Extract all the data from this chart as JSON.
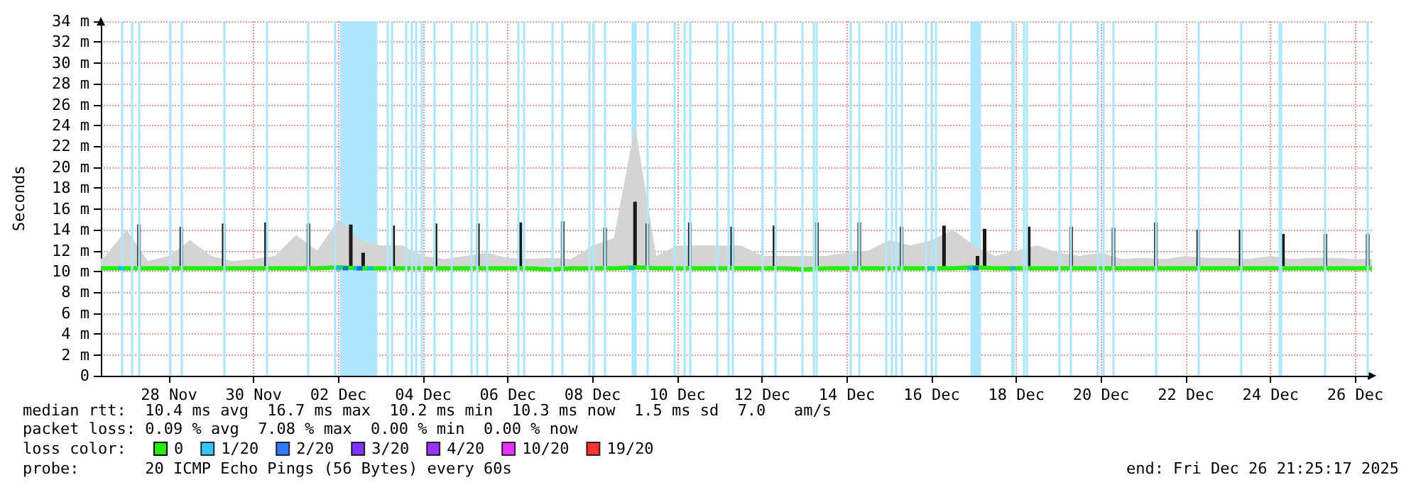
{
  "chart_data": {
    "type": "line",
    "ylabel": "Seconds",
    "legend_title": "loss color:",
    "legend": "bottom",
    "grid": true,
    "line_style": "solid",
    "xlim": [
      "2025-11-26T21:25",
      "2025-12-26T21:25"
    ],
    "xticks": [
      {
        "value": "2025-11-28T12:00",
        "label": "28 Nov"
      },
      {
        "value": "2025-11-30T12:00",
        "label": "30 Nov"
      },
      {
        "value": "2025-12-02T12:00",
        "label": "02 Dec"
      },
      {
        "value": "2025-12-04T12:00",
        "label": "04 Dec"
      },
      {
        "value": "2025-12-06T12:00",
        "label": "06 Dec"
      },
      {
        "value": "2025-12-08T12:00",
        "label": "08 Dec"
      },
      {
        "value": "2025-12-10T12:00",
        "label": "10 Dec"
      },
      {
        "value": "2025-12-12T12:00",
        "label": "12 Dec"
      },
      {
        "value": "2025-12-14T12:00",
        "label": "14 Dec"
      },
      {
        "value": "2025-12-16T12:00",
        "label": "16 Dec"
      },
      {
        "value": "2025-12-18T12:00",
        "label": "18 Dec"
      },
      {
        "value": "2025-12-20T12:00",
        "label": "20 Dec"
      },
      {
        "value": "2025-12-22T12:00",
        "label": "22 Dec"
      },
      {
        "value": "2025-12-24T12:00",
        "label": "24 Dec"
      },
      {
        "value": "2025-12-26T12:00",
        "label": "26 Dec"
      }
    ],
    "ylim": [
      0,
      34
    ],
    "yticks": [
      0,
      {
        "value": 2,
        "label": "2 m"
      },
      {
        "value": 4,
        "label": "4 m"
      },
      {
        "value": 6,
        "label": "6 m"
      },
      {
        "value": 8,
        "label": "8 m"
      },
      {
        "value": 10,
        "label": "10 m"
      },
      {
        "value": 12,
        "label": "12 m"
      },
      {
        "value": 14,
        "label": "14 m"
      },
      {
        "value": 16,
        "label": "16 m"
      },
      {
        "value": 18,
        "label": "18 m"
      },
      {
        "value": 20,
        "label": "20 m"
      },
      {
        "value": 22,
        "label": "22 m"
      },
      {
        "value": 24,
        "label": "24 m"
      },
      {
        "value": 26,
        "label": "26 m"
      },
      {
        "value": 28,
        "label": "28 m"
      },
      {
        "value": 30,
        "label": "30 m"
      },
      {
        "value": 32,
        "label": "32 m"
      },
      {
        "value": 34,
        "label": "34 m"
      }
    ],
    "annotations": [
      "median rtt:  10.4 ms avg  16.7 ms max  10.2 ms min  10.3 ms now  1.5 ms sd  7.0   am/s",
      "packet loss: 0.09 % avg  7.08 % max  0.00 % min  0.00 % now",
      "probe:       20 ICMP Echo Pings (56 Bytes) every 60s",
      "end: Fri Dec 26 21:25:17 2025"
    ],
    "series": [
      {
        "name": "0",
        "marker": "none",
        "color": "#22ee00",
        "x": [
          "2025-11-26T21:25",
          "2025-11-27T00:00",
          "2025-11-27T12:00",
          "2025-11-28T00:00",
          "2025-11-28T12:00",
          "2025-11-29T00:00",
          "2025-11-29T12:00",
          "2025-11-30T00:00",
          "2025-11-30T12:00",
          "2025-12-01T00:00",
          "2025-12-01T12:00",
          "2025-12-02T00:00",
          "2025-12-02T12:00",
          "2025-12-03T00:00",
          "2025-12-03T12:00",
          "2025-12-04T00:00",
          "2025-12-04T12:00",
          "2025-12-05T00:00",
          "2025-12-05T12:00",
          "2025-12-06T00:00",
          "2025-12-06T12:00",
          "2025-12-07T00:00",
          "2025-12-07T12:00",
          "2025-12-08T00:00",
          "2025-12-08T12:00",
          "2025-12-09T00:00",
          "2025-12-09T12:00",
          "2025-12-10T00:00",
          "2025-12-10T12:00",
          "2025-12-11T00:00",
          "2025-12-11T12:00",
          "2025-12-12T00:00",
          "2025-12-12T12:00",
          "2025-12-13T00:00",
          "2025-12-13T12:00",
          "2025-12-14T00:00",
          "2025-12-14T12:00",
          "2025-12-15T00:00",
          "2025-12-15T12:00",
          "2025-12-16T00:00",
          "2025-12-16T12:00",
          "2025-12-17T00:00",
          "2025-12-17T12:00",
          "2025-12-18T00:00",
          "2025-12-18T12:00",
          "2025-12-19T00:00",
          "2025-12-19T12:00",
          "2025-12-20T00:00",
          "2025-12-20T12:00",
          "2025-12-21T00:00",
          "2025-12-21T12:00",
          "2025-12-22T00:00",
          "2025-12-22T12:00",
          "2025-12-23T00:00",
          "2025-12-23T12:00",
          "2025-12-24T00:00",
          "2025-12-24T12:00",
          "2025-12-25T00:00",
          "2025-12-25T12:00",
          "2025-12-26T00:00",
          "2025-12-26T12:00",
          "2025-12-26T21:25"
        ],
        "values": [
          10.3,
          10.3,
          10.3,
          10.3,
          10.3,
          10.3,
          10.3,
          10.3,
          10.3,
          10.3,
          10.3,
          10.3,
          10.4,
          10.3,
          10.3,
          10.3,
          10.3,
          10.3,
          10.3,
          10.3,
          10.3,
          10.3,
          10.2,
          10.3,
          10.3,
          10.3,
          10.4,
          10.3,
          10.3,
          10.3,
          10.3,
          10.3,
          10.3,
          10.3,
          10.2,
          10.3,
          10.3,
          10.3,
          10.3,
          10.3,
          10.3,
          10.3,
          10.4,
          10.3,
          10.3,
          10.3,
          10.3,
          10.3,
          10.3,
          10.3,
          10.3,
          10.3,
          10.3,
          10.3,
          10.3,
          10.3,
          10.3,
          10.3,
          10.3,
          10.3,
          10.3,
          10.3
        ],
        "lower": [
          10.1,
          10.1,
          10.1,
          10.1,
          10.1,
          10.1,
          10.1,
          10.1,
          10.1,
          10.1,
          10.1,
          10.1,
          10.1,
          10.1,
          10.1,
          10.1,
          10.1,
          10.1,
          10.1,
          10.1,
          10.1,
          10.1,
          10.1,
          10.1,
          10.1,
          10.1,
          10.1,
          10.1,
          10.1,
          10.1,
          10.1,
          10.1,
          10.1,
          10.1,
          10.1,
          10.1,
          10.1,
          10.1,
          10.1,
          10.1,
          10.1,
          10.1,
          10.1,
          10.1,
          10.1,
          10.1,
          10.1,
          10.1,
          10.1,
          10.1,
          10.1,
          10.1,
          10.1,
          10.1,
          10.1,
          10.1,
          10.1,
          10.1,
          10.1,
          10.1,
          10.1,
          10.1
        ],
        "upper": [
          11.2,
          11.5,
          14,
          11,
          11.5,
          13,
          11.5,
          11,
          11.2,
          11.5,
          13.5,
          12,
          15,
          13,
          12.5,
          12.5,
          11.5,
          11.2,
          11.5,
          11.8,
          11.3,
          11.2,
          11.3,
          11.2,
          12.5,
          13.2,
          24,
          11.5,
          12.5,
          12.5,
          12.5,
          12.5,
          11.5,
          11.5,
          11.5,
          11.5,
          11.8,
          12,
          13,
          12.5,
          13,
          14,
          12.5,
          11.5,
          12,
          12.5,
          11.8,
          11.5,
          11.8,
          11.2,
          11.3,
          11.2,
          11.5,
          11.3,
          11.3,
          11.2,
          11.5,
          11.2,
          11.3,
          11.3,
          11.2,
          11.2
        ]
      },
      {
        "marker": "none",
        "color": "#1a1a1a",
        "x": [
          "2025-11-27T19:00",
          "2025-11-27T19:00",
          "2025-11-27T20:00",
          "2025-11-28T19:00",
          "2025-11-28T19:00",
          "2025-11-28T20:00",
          "2025-11-29T19:00",
          "2025-11-29T19:00",
          "2025-11-29T20:00",
          "2025-11-30T19:00",
          "2025-11-30T19:00",
          "2025-11-30T20:00",
          "2025-12-01T19:00",
          "2025-12-01T19:00",
          "2025-12-01T20:00",
          "2025-12-02T19:00",
          "2025-12-02T19:00",
          "2025-12-02T20:00",
          "2025-12-03T02:00",
          "2025-12-03T02:00",
          "2025-12-03T03:00",
          "2025-12-03T19:00",
          "2025-12-03T19:00",
          "2025-12-03T20:00",
          "2025-12-04T19:00",
          "2025-12-04T19:00",
          "2025-12-04T20:00",
          "2025-12-05T19:00",
          "2025-12-05T19:00",
          "2025-12-05T20:00",
          "2025-12-06T19:00",
          "2025-12-06T19:00",
          "2025-12-06T20:00",
          "2025-12-07T19:00",
          "2025-12-07T19:00",
          "2025-12-07T20:00",
          "2025-12-08T19:00",
          "2025-12-08T19:00",
          "2025-12-08T20:00",
          "2025-12-09T12:00",
          "2025-12-09T12:00",
          "2025-12-09T13:00",
          "2025-12-09T19:00",
          "2025-12-09T19:00",
          "2025-12-09T20:00",
          "2025-12-10T19:00",
          "2025-12-10T19:00",
          "2025-12-10T20:00",
          "2025-12-11T19:00",
          "2025-12-11T19:00",
          "2025-12-11T20:00",
          "2025-12-12T19:00",
          "2025-12-12T19:00",
          "2025-12-12T20:00",
          "2025-12-13T19:00",
          "2025-12-13T19:00",
          "2025-12-13T20:00",
          "2025-12-14T19:00",
          "2025-12-14T19:00",
          "2025-12-14T20:00",
          "2025-12-15T19:00",
          "2025-12-15T19:00",
          "2025-12-15T20:00",
          "2025-12-16T19:00",
          "2025-12-16T19:00",
          "2025-12-16T20:00",
          "2025-12-17T14:00",
          "2025-12-17T14:00",
          "2025-12-17T15:00",
          "2025-12-17T18:00",
          "2025-12-17T18:00",
          "2025-12-17T19:00",
          "2025-12-18T19:00",
          "2025-12-18T19:00",
          "2025-12-18T20:00",
          "2025-12-19T19:00",
          "2025-12-19T19:00",
          "2025-12-19T20:00",
          "2025-12-20T19:00",
          "2025-12-20T19:00",
          "2025-12-20T20:00",
          "2025-12-21T19:00",
          "2025-12-21T19:00",
          "2025-12-21T20:00",
          "2025-12-22T19:00",
          "2025-12-22T19:00",
          "2025-12-22T20:00",
          "2025-12-23T19:00",
          "2025-12-23T19:00",
          "2025-12-23T20:00",
          "2025-12-24T19:00",
          "2025-12-24T19:00",
          "2025-12-24T20:00",
          "2025-12-25T19:00",
          "2025-12-25T19:00",
          "2025-12-25T20:00",
          "2025-12-26T19:00",
          "2025-12-26T19:00"
        ],
        "values": [
          10.5,
          14.5,
          null,
          10.5,
          14.3,
          null,
          10.5,
          14.6,
          null,
          10.5,
          14.7,
          null,
          10.5,
          14.6,
          null,
          10.5,
          14.5,
          null,
          10.5,
          11.8,
          null,
          10.5,
          14.4,
          null,
          10.5,
          14.6,
          null,
          10.5,
          14.6,
          null,
          10.5,
          14.7,
          null,
          10.5,
          14.8,
          null,
          10.5,
          14.2,
          null,
          10.5,
          16.7,
          null,
          10.5,
          14.6,
          null,
          10.5,
          14.7,
          null,
          10.5,
          14.3,
          null,
          10.5,
          14.4,
          null,
          10.5,
          14.7,
          null,
          10.5,
          14.7,
          null,
          10.5,
          14.3,
          null,
          10.5,
          14.4,
          null,
          10.5,
          11.5,
          null,
          10.5,
          14.1,
          null,
          10.5,
          14.3,
          null,
          10.5,
          14.3,
          null,
          10.5,
          14.2,
          null,
          10.5,
          14.7,
          null,
          10.5,
          14.0,
          null,
          10.5,
          14.0,
          null,
          10.5,
          13.6,
          null,
          10.5,
          13.6,
          null,
          10.5,
          13.6
        ]
      },
      {
        "name": "1/20",
        "type": "scatter",
        "marker": "square",
        "color": "#00b8ff",
        "x": [
          "2025-11-27T09:00",
          "2025-12-02T12:00",
          "2025-12-02T22:00",
          "2025-12-03T06:00",
          "2025-12-09T10:00",
          "2025-12-16T12:00",
          "2025-12-17T10:00",
          "2025-12-18T10:00"
        ],
        "values": [
          10.3,
          10.3,
          10.3,
          10.3,
          10.3,
          10.3,
          10.3,
          10.3
        ]
      },
      {
        "name": "2/20",
        "type": "scatter",
        "marker": "square",
        "color": "#0059ff",
        "x": [
          "2025-12-02T16:00",
          "2025-12-03T00:00",
          "2025-12-17T13:00"
        ],
        "values": [
          10.3,
          10.3,
          10.3
        ]
      },
      {
        "name": "3/20",
        "type": "scatter",
        "color": "#5e00ff"
      },
      {
        "name": "4/20",
        "type": "scatter",
        "color": "#7f00ff"
      },
      {
        "name": "10/20",
        "type": "scatter",
        "color": "#dd00ff"
      },
      {
        "name": "19/20",
        "type": "scatter",
        "color": "#ff0000"
      }
    ],
    "bands": [
      {
        "axis": "x",
        "from": "2025-12-02T13:00",
        "to": "2025-12-03T10:00",
        "color": "#aee6fb"
      },
      {
        "axis": "x",
        "from": "2025-12-09T10:00",
        "to": "2025-12-09T13:00",
        "color": "#aee6fb"
      },
      {
        "axis": "x",
        "from": "2025-12-17T10:00",
        "to": "2025-12-17T16:00",
        "color": "#aee6fb"
      },
      {
        "axis": "x",
        "from": "2025-12-18T09:00",
        "to": "2025-12-18T11:00",
        "color": "#aee6fb"
      }
    ],
    "ref_lines": [
      {
        "axis": "x",
        "value": "2025-11-27T09:00",
        "color": "#aee6fb"
      },
      {
        "axis": "x",
        "value": "2025-11-27T15:00",
        "color": "#aee6fb"
      },
      {
        "axis": "x",
        "value": "2025-11-27T19:00",
        "color": "#aee6fb"
      },
      {
        "axis": "x",
        "value": "2025-11-28T13:00",
        "color": "#aee6fb"
      },
      {
        "axis": "x",
        "value": "2025-11-28T19:00",
        "color": "#aee6fb"
      },
      {
        "axis": "x",
        "value": "2025-11-29T19:00",
        "color": "#aee6fb"
      },
      {
        "axis": "x",
        "value": "2025-11-30T19:00",
        "color": "#aee6fb"
      },
      {
        "axis": "x",
        "value": "2025-12-01T19:00",
        "color": "#aee6fb"
      },
      {
        "axis": "x",
        "value": "2025-12-02T10:00",
        "color": "#aee6fb"
      },
      {
        "axis": "x",
        "value": "2025-12-03T16:00",
        "color": "#aee6fb"
      },
      {
        "axis": "x",
        "value": "2025-12-03T18:00",
        "color": "#aee6fb"
      },
      {
        "axis": "x",
        "value": "2025-12-04T02:00",
        "color": "#aee6fb"
      },
      {
        "axis": "x",
        "value": "2025-12-04T05:00",
        "color": "#aee6fb"
      },
      {
        "axis": "x",
        "value": "2025-12-04T08:00",
        "color": "#aee6fb"
      },
      {
        "axis": "x",
        "value": "2025-12-04T11:00",
        "color": "#aee6fb"
      },
      {
        "axis": "x",
        "value": "2025-12-04T18:00",
        "color": "#aee6fb"
      },
      {
        "axis": "x",
        "value": "2025-12-05T04:00",
        "color": "#aee6fb"
      },
      {
        "axis": "x",
        "value": "2025-12-05T15:00",
        "color": "#aee6fb"
      },
      {
        "axis": "x",
        "value": "2025-12-05T18:00",
        "color": "#aee6fb"
      },
      {
        "axis": "x",
        "value": "2025-12-06T00:00",
        "color": "#aee6fb"
      },
      {
        "axis": "x",
        "value": "2025-12-06T18:00",
        "color": "#aee6fb"
      },
      {
        "axis": "x",
        "value": "2025-12-06T21:00",
        "color": "#aee6fb"
      },
      {
        "axis": "x",
        "value": "2025-12-07T13:00",
        "color": "#aee6fb"
      },
      {
        "axis": "x",
        "value": "2025-12-07T19:00",
        "color": "#aee6fb"
      },
      {
        "axis": "x",
        "value": "2025-12-08T10:00",
        "color": "#aee6fb"
      },
      {
        "axis": "x",
        "value": "2025-12-08T12:00",
        "color": "#aee6fb"
      },
      {
        "axis": "x",
        "value": "2025-12-08T19:00",
        "color": "#aee6fb"
      },
      {
        "axis": "x",
        "value": "2025-12-09T19:00",
        "color": "#aee6fb"
      },
      {
        "axis": "x",
        "value": "2025-12-10T10:00",
        "color": "#aee6fb"
      },
      {
        "axis": "x",
        "value": "2025-12-10T16:00",
        "color": "#aee6fb"
      },
      {
        "axis": "x",
        "value": "2025-12-10T19:00",
        "color": "#aee6fb"
      },
      {
        "axis": "x",
        "value": "2025-12-11T10:00",
        "color": "#aee6fb"
      },
      {
        "axis": "x",
        "value": "2025-12-11T17:00",
        "color": "#aee6fb"
      },
      {
        "axis": "x",
        "value": "2025-12-11T19:00",
        "color": "#aee6fb"
      },
      {
        "axis": "x",
        "value": "2025-12-12T12:00",
        "color": "#aee6fb"
      },
      {
        "axis": "x",
        "value": "2025-12-12T19:00",
        "color": "#aee6fb"
      },
      {
        "axis": "x",
        "value": "2025-12-13T11:00",
        "color": "#aee6fb"
      },
      {
        "axis": "x",
        "value": "2025-12-13T17:00",
        "color": "#aee6fb"
      },
      {
        "axis": "x",
        "value": "2025-12-13T19:00",
        "color": "#aee6fb"
      },
      {
        "axis": "x",
        "value": "2025-12-14T14:00",
        "color": "#aee6fb"
      },
      {
        "axis": "x",
        "value": "2025-12-14T19:00",
        "color": "#aee6fb"
      },
      {
        "axis": "x",
        "value": "2025-12-15T10:00",
        "color": "#aee6fb"
      },
      {
        "axis": "x",
        "value": "2025-12-15T13:00",
        "color": "#aee6fb"
      },
      {
        "axis": "x",
        "value": "2025-12-15T16:00",
        "color": "#aee6fb"
      },
      {
        "axis": "x",
        "value": "2025-12-15T19:00",
        "color": "#aee6fb"
      },
      {
        "axis": "x",
        "value": "2025-12-16T09:00",
        "color": "#aee6fb"
      },
      {
        "axis": "x",
        "value": "2025-12-16T12:00",
        "color": "#aee6fb"
      },
      {
        "axis": "x",
        "value": "2025-12-16T14:00",
        "color": "#aee6fb"
      },
      {
        "axis": "x",
        "value": "2025-12-18T16:00",
        "color": "#aee6fb"
      },
      {
        "axis": "x",
        "value": "2025-12-18T18:00",
        "color": "#aee6fb"
      },
      {
        "axis": "x",
        "value": "2025-12-19T12:00",
        "color": "#aee6fb"
      },
      {
        "axis": "x",
        "value": "2025-12-19T19:00",
        "color": "#aee6fb"
      },
      {
        "axis": "x",
        "value": "2025-12-20T10:00",
        "color": "#aee6fb"
      },
      {
        "axis": "x",
        "value": "2025-12-20T13:00",
        "color": "#aee6fb"
      },
      {
        "axis": "x",
        "value": "2025-12-20T19:00",
        "color": "#aee6fb"
      },
      {
        "axis": "x",
        "value": "2025-12-21T19:00",
        "color": "#aee6fb"
      },
      {
        "axis": "x",
        "value": "2025-12-22T19:00",
        "color": "#aee6fb"
      },
      {
        "axis": "x",
        "value": "2025-12-23T19:00",
        "color": "#aee6fb"
      },
      {
        "axis": "x",
        "value": "2025-12-24T17:00",
        "color": "#aee6fb"
      },
      {
        "axis": "x",
        "value": "2025-12-24T18:00",
        "color": "#aee6fb"
      },
      {
        "axis": "x",
        "value": "2025-12-25T19:00",
        "color": "#aee6fb"
      },
      {
        "axis": "x",
        "value": "2025-12-26T19:00",
        "color": "#aee6fb"
      }
    ]
  }
}
